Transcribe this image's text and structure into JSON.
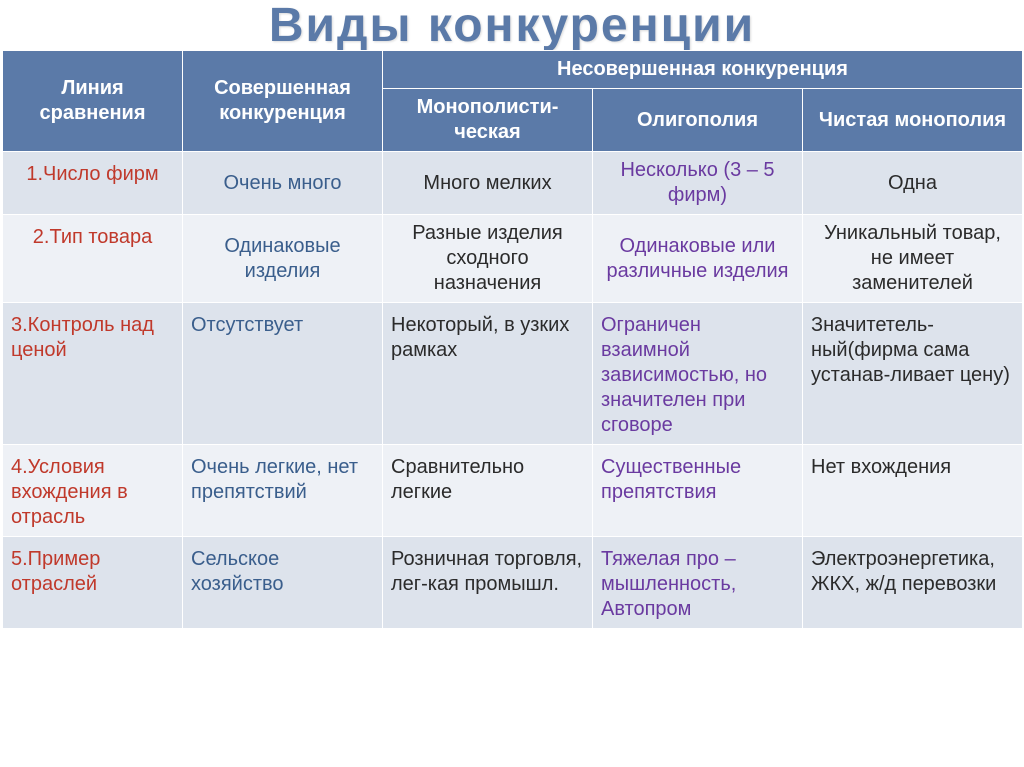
{
  "title": "Виды  конкуренции",
  "colors": {
    "header_bg": "#5b7aa8",
    "header_text": "#ffffff",
    "band_a": "#dde3ec",
    "band_b": "#eef1f6",
    "red": "#c0392b",
    "blue": "#3a5e8c",
    "dark": "#2b2b2b",
    "purple": "#6a3aa0"
  },
  "header": {
    "comparison_line": "Линия сравнения",
    "perfect": "Совершенная конкуренция",
    "imperfect": "Несовершенная конкуренция",
    "mono_comp": "Монополисти-ческая",
    "oligopoly": "Олигополия",
    "pure_monopoly": "Чистая монополия"
  },
  "rows": [
    {
      "label": "1.Число фирм",
      "label_color": "#c0392b",
      "perfect": "Очень много",
      "perfect_color": "#3a5e8c",
      "mono": "Много мелких",
      "mono_color": "#2b2b2b",
      "olig": "Несколько (3 – 5 фирм)",
      "olig_color": "#6a3aa0",
      "pure": "Одна",
      "pure_color": "#2b2b2b",
      "align": "center"
    },
    {
      "label": "2.Тип товара",
      "label_color": "#c0392b",
      "perfect": "Одинаковые изделия",
      "perfect_color": "#3a5e8c",
      "mono": "Разные изделия сходного назначения",
      "mono_color": "#2b2b2b",
      "olig": "Одинаковые или различные изделия",
      "olig_color": "#6a3aa0",
      "pure": "Уникальный товар, не имеет заменителей",
      "pure_color": "#2b2b2b",
      "align": "center"
    },
    {
      "label": "3.Контроль над ценой",
      "label_color": "#c0392b",
      "perfect": "Отсутствует",
      "perfect_color": "#3a5e8c",
      "mono": "Некоторый, в узких рамках",
      "mono_color": "#2b2b2b",
      "olig": "Ограничен взаимной зависимостью, но значителен при сговоре",
      "olig_color": "#6a3aa0",
      "pure": "Значитетель-ный(фирма сама устанав-ливает цену)",
      "pure_color": "#2b2b2b",
      "align": "left"
    },
    {
      "label": "4.Условия вхождения в отрасль",
      "label_color": "#c0392b",
      "perfect": "Очень легкие, нет препятствий",
      "perfect_color": "#3a5e8c",
      "mono": "Сравнительно легкие",
      "mono_color": "#2b2b2b",
      "olig": "Существенные препятствия",
      "olig_color": "#6a3aa0",
      "pure": "Нет вхождения",
      "pure_color": "#2b2b2b",
      "align": "left"
    },
    {
      "label": "5.Пример отраслей",
      "label_color": "#c0392b",
      "perfect": "Сельское хозяйство",
      "perfect_color": "#3a5e8c",
      "mono": "Розничная торговля, лег-кая промышл.",
      "mono_color": "#2b2b2b",
      "olig": "Тяжелая про –мышленность, Автопром",
      "olig_color": "#6a3aa0",
      "pure": "Электроэнергетика, ЖКХ, ж/д перевозки",
      "pure_color": "#2b2b2b",
      "align": "left"
    }
  ],
  "col_widths": [
    "180px",
    "200px",
    "210px",
    "210px",
    "220px"
  ]
}
